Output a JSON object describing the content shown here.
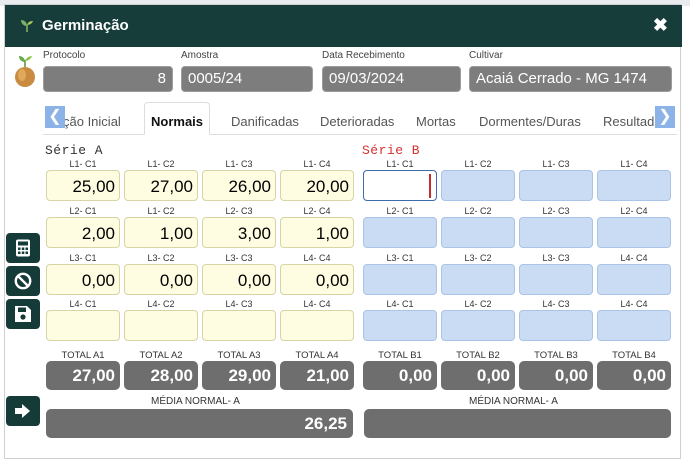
{
  "window": {
    "title": "Germinação",
    "close_symbol": "✖"
  },
  "header": {
    "protocolo": {
      "label": "Protocolo",
      "value": "8"
    },
    "amostra": {
      "label": "Amostra",
      "value": "0005/24"
    },
    "data_recebimento": {
      "label": "Data Recebimento",
      "value": "09/03/2024"
    },
    "cultivar": {
      "label": "Cultivar",
      "value": "Acaiá Cerrado - MG 1474"
    }
  },
  "tabs": [
    {
      "label": "ção Inicial",
      "active": false
    },
    {
      "label": "Normais",
      "active": true
    },
    {
      "label": "Danificadas",
      "active": false
    },
    {
      "label": "Deterioradas",
      "active": false
    },
    {
      "label": "Mortas",
      "active": false
    },
    {
      "label": "Dormentes/Duras",
      "active": false
    },
    {
      "label": "Resultad",
      "active": false
    }
  ],
  "tab_arrows": {
    "left": "❮",
    "right": "❯"
  },
  "serie_a": {
    "title": "Série A",
    "rows": [
      {
        "labels": [
          "L1- C1",
          "L1- C2",
          "L1- C3",
          "L1- C4"
        ],
        "values": [
          "25,00",
          "27,00",
          "26,00",
          "20,00"
        ]
      },
      {
        "labels": [
          "L2- C1",
          "L1- C2",
          "L2- C3",
          "L2- C4"
        ],
        "values": [
          "2,00",
          "1,00",
          "3,00",
          "1,00"
        ]
      },
      {
        "labels": [
          "L3- C1",
          "L3- C2",
          "L3- C3",
          "L4- C4"
        ],
        "values": [
          "0,00",
          "0,00",
          "0,00",
          "0,00"
        ]
      },
      {
        "labels": [
          "L4- C1",
          "L4- C2",
          "L4- C3",
          "L4- C4"
        ],
        "values": [
          "",
          "",
          "",
          ""
        ]
      }
    ],
    "totals": [
      {
        "label": "TOTAL A1",
        "value": "27,00"
      },
      {
        "label": "TOTAL A2",
        "value": "28,00"
      },
      {
        "label": "TOTAL A3",
        "value": "29,00"
      },
      {
        "label": "TOTAL A4",
        "value": "21,00"
      }
    ],
    "media": {
      "label": "MÉDIA NORMAL- A",
      "value": "26,25"
    }
  },
  "serie_b": {
    "title": "Série B",
    "rows": [
      {
        "labels": [
          "L1- C1",
          "L1- C2",
          "L1- C3",
          "L1- C4"
        ],
        "values": [
          "",
          "",
          "",
          ""
        ]
      },
      {
        "labels": [
          "L2- C1",
          "L2- C2",
          "L2- C3",
          "L2- C4"
        ],
        "values": [
          "",
          "",
          "",
          ""
        ]
      },
      {
        "labels": [
          "L3- C1",
          "L3- C2",
          "L3- C3",
          "L4- C4"
        ],
        "values": [
          "",
          "",
          "",
          ""
        ]
      },
      {
        "labels": [
          "L4- C1",
          "L4- C2",
          "L4- C3",
          "L4- C4"
        ],
        "values": [
          "",
          "",
          "",
          ""
        ]
      }
    ],
    "totals": [
      {
        "label": "TOTAL B1",
        "value": "0,00"
      },
      {
        "label": "TOTAL B2",
        "value": "0,00"
      },
      {
        "label": "TOTAL B3",
        "value": "0,00"
      },
      {
        "label": "TOTAL B4",
        "value": "0,00"
      }
    ],
    "media": {
      "label": "MÉDIA NORMAL- A",
      "value": ""
    }
  },
  "sidebar_buttons": [
    "calculator-icon",
    "ban-icon",
    "save-icon",
    "exit-icon"
  ],
  "colors": {
    "titlebar": "#163d3a",
    "serie_b_title": "#d63031",
    "cell_a": "#fefde1",
    "cell_b": "#c9dcf4",
    "total": "#6e6e6e",
    "tab_arrow": "#8cb3e8"
  }
}
